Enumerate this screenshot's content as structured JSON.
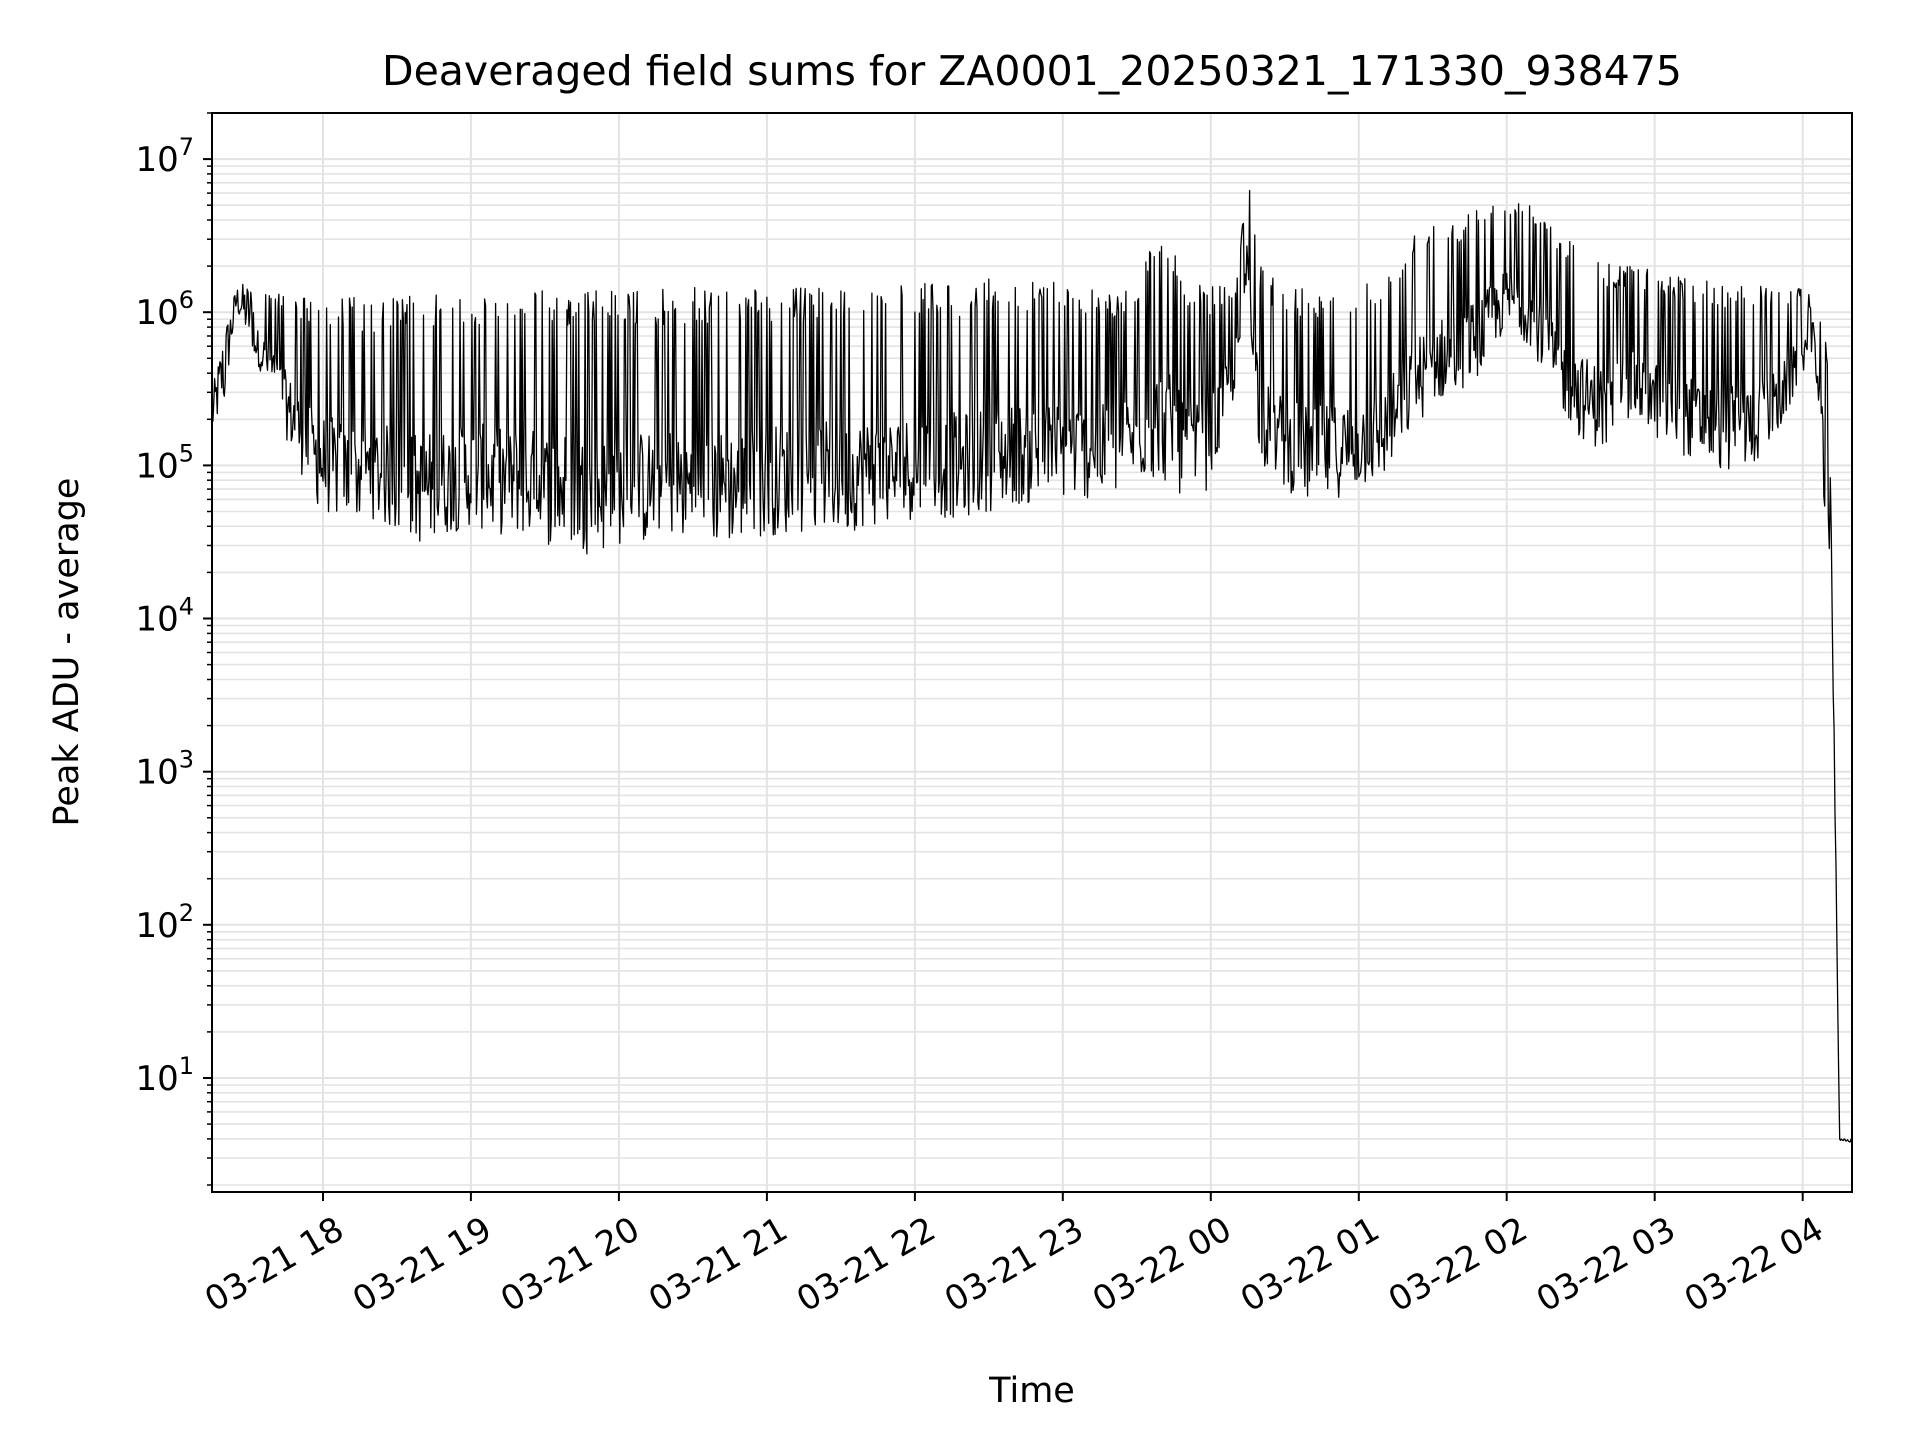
{
  "chart_data": {
    "type": "line",
    "title": "Deaveraged field sums for ZA0001_20250321_171330_938475",
    "xlabel": "Time",
    "ylabel": "Peak ADU - average",
    "yscale": "log",
    "ylim": [
      1.8,
      20000000
    ],
    "xlim": [
      "2025-03-21 17:15",
      "2025-03-22 04:20"
    ],
    "grid": true,
    "line_color": "#000000",
    "grid_color": "#e3e3e3",
    "y_ticks": [
      {
        "value": 10,
        "base": "10",
        "exp": "1"
      },
      {
        "value": 100,
        "base": "10",
        "exp": "2"
      },
      {
        "value": 1000,
        "base": "10",
        "exp": "3"
      },
      {
        "value": 10000,
        "base": "10",
        "exp": "4"
      },
      {
        "value": 100000,
        "base": "10",
        "exp": "5"
      },
      {
        "value": 1000000,
        "base": "10",
        "exp": "6"
      },
      {
        "value": 10000000,
        "base": "10",
        "exp": "7"
      }
    ],
    "x_ticks": [
      {
        "time": "2025-03-21 18:00",
        "label": "03-21 18"
      },
      {
        "time": "2025-03-21 19:00",
        "label": "03-21 19"
      },
      {
        "time": "2025-03-21 20:00",
        "label": "03-21 20"
      },
      {
        "time": "2025-03-21 21:00",
        "label": "03-21 21"
      },
      {
        "time": "2025-03-21 22:00",
        "label": "03-21 22"
      },
      {
        "time": "2025-03-21 23:00",
        "label": "03-21 23"
      },
      {
        "time": "2025-03-22 00:00",
        "label": "03-22 00"
      },
      {
        "time": "2025-03-22 01:00",
        "label": "03-22 01"
      },
      {
        "time": "2025-03-22 02:00",
        "label": "03-22 02"
      },
      {
        "time": "2025-03-22 03:00",
        "label": "03-22 03"
      },
      {
        "time": "2025-03-22 04:00",
        "label": "03-22 04"
      }
    ],
    "series": [
      {
        "x": [
          "2025-03-21 17:15",
          "2025-03-21 17:20",
          "2025-03-21 17:25",
          "2025-03-21 17:30",
          "2025-03-21 17:35",
          "2025-03-21 17:40",
          "2025-03-21 17:45",
          "2025-03-21 17:50",
          "2025-03-21 17:55",
          "2025-03-21 18:00",
          "2025-03-21 18:10",
          "2025-03-21 18:20",
          "2025-03-21 18:30",
          "2025-03-21 18:40",
          "2025-03-21 18:50",
          "2025-03-21 19:00",
          "2025-03-21 19:10",
          "2025-03-21 19:20",
          "2025-03-21 19:30",
          "2025-03-21 19:40",
          "2025-03-21 19:50",
          "2025-03-21 20:00",
          "2025-03-21 20:10",
          "2025-03-21 20:20",
          "2025-03-21 20:30",
          "2025-03-21 20:40",
          "2025-03-21 20:50",
          "2025-03-21 21:00",
          "2025-03-21 21:10",
          "2025-03-21 21:20",
          "2025-03-21 21:30",
          "2025-03-21 21:40",
          "2025-03-21 21:50",
          "2025-03-21 22:00",
          "2025-03-21 22:10",
          "2025-03-21 22:20",
          "2025-03-21 22:30",
          "2025-03-21 22:40",
          "2025-03-21 22:50",
          "2025-03-21 23:00",
          "2025-03-21 23:10",
          "2025-03-21 23:20",
          "2025-03-21 23:30",
          "2025-03-21 23:40",
          "2025-03-21 23:50",
          "2025-03-22 00:00",
          "2025-03-22 00:10",
          "2025-03-22 00:15",
          "2025-03-22 00:20",
          "2025-03-22 00:30",
          "2025-03-22 00:40",
          "2025-03-22 00:50",
          "2025-03-22 01:00",
          "2025-03-22 01:10",
          "2025-03-22 01:20",
          "2025-03-22 01:30",
          "2025-03-22 01:40",
          "2025-03-22 01:50",
          "2025-03-22 02:00",
          "2025-03-22 02:10",
          "2025-03-22 02:20",
          "2025-03-22 02:30",
          "2025-03-22 02:40",
          "2025-03-22 02:50",
          "2025-03-22 03:00",
          "2025-03-22 03:10",
          "2025-03-22 03:20",
          "2025-03-22 03:30",
          "2025-03-22 03:40",
          "2025-03-22 03:50",
          "2025-03-22 04:00",
          "2025-03-22 04:05",
          "2025-03-22 04:10",
          "2025-03-22 04:12",
          "2025-03-22 04:15",
          "2025-03-22 04:20"
        ],
        "min": [
          150000,
          250000,
          1000000,
          600000,
          400000,
          300000,
          150000,
          100000,
          60000,
          50000,
          40000,
          45000,
          35000,
          30000,
          35000,
          40000,
          35000,
          35000,
          30000,
          30000,
          25000,
          30000,
          30000,
          35000,
          30000,
          30000,
          32000,
          35000,
          35000,
          38000,
          35000,
          40000,
          40000,
          45000,
          45000,
          45000,
          50000,
          55000,
          55000,
          60000,
          60000,
          60000,
          80000,
          80000,
          60000,
          70000,
          300000,
          1500000,
          100000,
          70000,
          55000,
          60000,
          70000,
          80000,
          150000,
          250000,
          300000,
          400000,
          800000,
          600000,
          250000,
          150000,
          120000,
          200000,
          150000,
          120000,
          100000,
          90000,
          100000,
          150000,
          400000,
          500000,
          20000,
          8000,
          3.8,
          3.8
        ],
        "max": [
          300000,
          800000,
          1500000,
          1600000,
          1500000,
          1400000,
          1400000,
          1300000,
          1300000,
          1300000,
          1300000,
          1200000,
          1300000,
          1300000,
          1300000,
          1300000,
          1350000,
          1400000,
          1400000,
          1400000,
          1400000,
          1400000,
          1400000,
          1450000,
          1450000,
          1450000,
          1450000,
          1450000,
          1450000,
          1450000,
          1500000,
          1500000,
          1500000,
          1500000,
          1600000,
          1600000,
          1650000,
          1700000,
          1700000,
          1600000,
          1500000,
          1400000,
          1500000,
          4500000,
          1500000,
          1500000,
          1600000,
          9000000,
          2000000,
          1500000,
          1500000,
          1500000,
          1500000,
          1800000,
          3000000,
          4500000,
          4000000,
          6000000,
          5500000,
          5000000,
          4000000,
          2500000,
          2200000,
          2000000,
          2000000,
          1800000,
          1700000,
          1600000,
          1500000,
          1500000,
          1500000,
          1200000,
          800000,
          20000,
          4.0,
          4.0
        ]
      }
    ]
  }
}
